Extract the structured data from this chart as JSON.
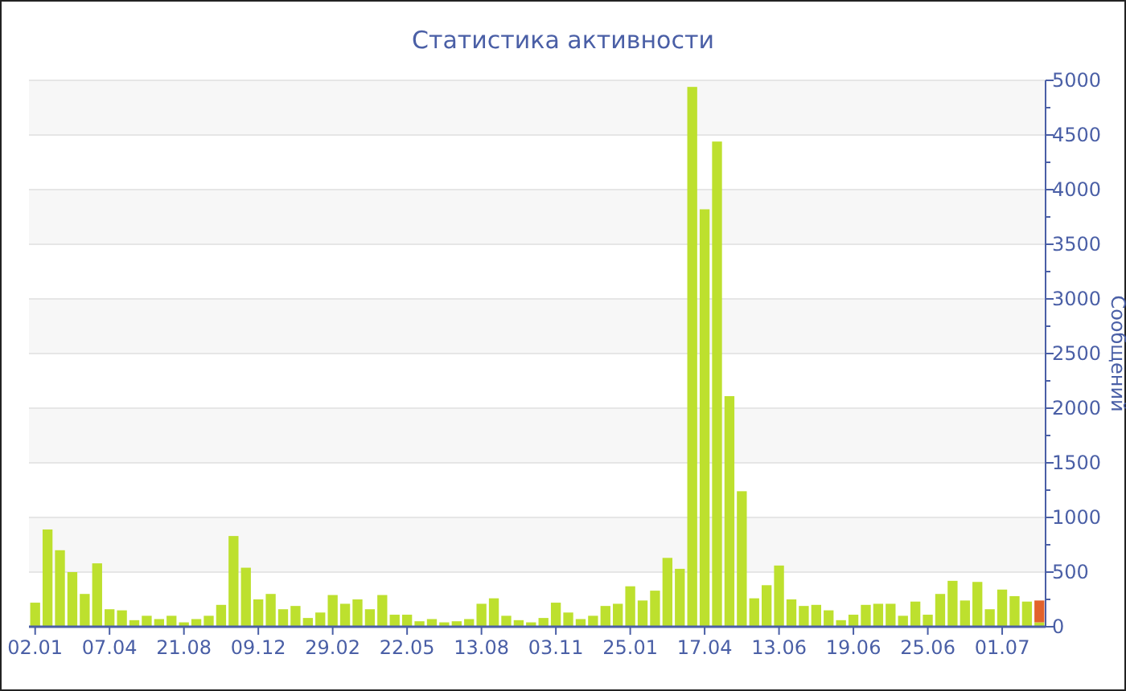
{
  "chart_data": {
    "type": "bar",
    "title": "Статистика активности",
    "ylabel": "Сообщений",
    "categories": [
      "02.01",
      null,
      null,
      null,
      null,
      null,
      "07.04",
      null,
      null,
      null,
      null,
      null,
      "21.08",
      null,
      null,
      null,
      null,
      null,
      "09.12",
      null,
      null,
      null,
      null,
      null,
      "29.02",
      null,
      null,
      null,
      null,
      null,
      "22.05",
      null,
      null,
      null,
      null,
      null,
      "13.08",
      null,
      null,
      null,
      null,
      null,
      "03.11",
      null,
      null,
      null,
      null,
      null,
      "25.01",
      null,
      null,
      null,
      null,
      null,
      "17.04",
      null,
      null,
      null,
      null,
      null,
      "13.06",
      null,
      null,
      null,
      null,
      null,
      "19.06",
      null,
      null,
      null,
      null,
      null,
      "25.06",
      null,
      null,
      null,
      null,
      null,
      "01.07",
      null,
      null,
      null
    ],
    "stacked": true,
    "series": [
      {
        "color": "#bde02e",
        "values": [
          220,
          890,
          700,
          500,
          300,
          580,
          160,
          150,
          60,
          100,
          70,
          100,
          40,
          70,
          100,
          200,
          830,
          540,
          250,
          300,
          160,
          190,
          80,
          130,
          290,
          210,
          250,
          160,
          290,
          110,
          110,
          50,
          70,
          40,
          50,
          70,
          210,
          260,
          100,
          60,
          40,
          80,
          220,
          130,
          70,
          100,
          190,
          210,
          370,
          240,
          330,
          630,
          530,
          4940,
          3820,
          4440,
          2110,
          1240,
          260,
          380,
          560,
          250,
          190,
          200,
          150,
          60,
          110,
          200,
          210,
          210,
          100,
          230,
          110,
          300,
          420,
          240,
          410,
          160,
          340,
          280,
          230,
          40
        ]
      },
      {
        "color": "#e2622b",
        "values": [
          null,
          null,
          null,
          null,
          null,
          null,
          null,
          null,
          null,
          null,
          null,
          null,
          null,
          null,
          null,
          null,
          null,
          null,
          null,
          null,
          null,
          null,
          null,
          null,
          null,
          null,
          null,
          null,
          null,
          null,
          null,
          null,
          null,
          null,
          null,
          null,
          null,
          null,
          null,
          null,
          null,
          null,
          null,
          null,
          null,
          null,
          null,
          null,
          null,
          null,
          null,
          null,
          null,
          null,
          null,
          null,
          null,
          null,
          null,
          null,
          null,
          null,
          null,
          null,
          null,
          null,
          null,
          null,
          null,
          null,
          null,
          null,
          null,
          null,
          null,
          null,
          null,
          null,
          null,
          null,
          null,
          200
        ]
      }
    ],
    "ylim": [
      0,
      5000
    ],
    "yticks": [
      0,
      {
        "value": 250,
        "label": null
      },
      500,
      {
        "value": 750,
        "label": null
      },
      1000,
      {
        "value": 1250,
        "label": null
      },
      1500,
      {
        "value": 1750,
        "label": null
      },
      2000,
      {
        "value": 2250,
        "label": null
      },
      2500,
      {
        "value": 2750,
        "label": null
      },
      3000,
      {
        "value": 3250,
        "label": null
      },
      3500,
      {
        "value": 3750,
        "label": null
      },
      4000,
      {
        "value": 4250,
        "label": null
      },
      4500,
      {
        "value": 4750,
        "label": null
      },
      5000
    ],
    "grid": "y"
  }
}
